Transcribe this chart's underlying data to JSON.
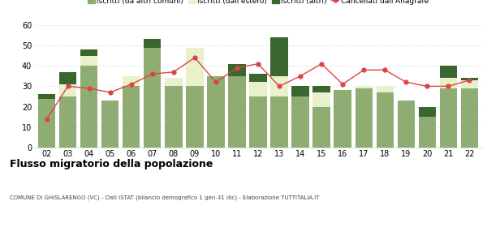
{
  "years": [
    "02",
    "03",
    "04",
    "05",
    "06",
    "07",
    "08",
    "09",
    "10",
    "11",
    "12",
    "13",
    "14",
    "15",
    "16",
    "17",
    "18",
    "19",
    "20",
    "21",
    "22"
  ],
  "iscritti_comuni": [
    24,
    25,
    40,
    23,
    30,
    49,
    30,
    30,
    35,
    35,
    25,
    25,
    25,
    20,
    28,
    29,
    27,
    23,
    15,
    29,
    29
  ],
  "iscritti_estero": [
    0,
    6,
    5,
    0,
    5,
    0,
    4,
    19,
    0,
    0,
    7,
    10,
    0,
    7,
    0,
    1,
    3,
    0,
    0,
    5,
    4
  ],
  "iscritti_altri": [
    2,
    6,
    3,
    0,
    0,
    4,
    0,
    0,
    0,
    6,
    4,
    19,
    5,
    3,
    0,
    0,
    0,
    0,
    5,
    6,
    1
  ],
  "cancellati": [
    14,
    30,
    29,
    27,
    31,
    36,
    37,
    44,
    32,
    39,
    41,
    30,
    35,
    41,
    31,
    38,
    38,
    32,
    30,
    30,
    33
  ],
  "color_comuni": "#8fac72",
  "color_estero": "#e8f0cc",
  "color_altri": "#3a6630",
  "color_cancellati": "#dd4444",
  "title": "Flusso migratorio della popolazione",
  "subtitle": "COMUNE DI GHISLARENGO (VC) - Dati ISTAT (bilancio demografico 1 gen-31 dic) - Elaborazione TUTTITALIA.IT",
  "legend_labels": [
    "Iscritti (da altri comuni)",
    "Iscritti (dall'estero)",
    "Iscritti (altri)",
    "Cancellati dall'Anagrafe"
  ],
  "ylim": [
    0,
    60
  ],
  "yticks": [
    0,
    10,
    20,
    30,
    40,
    50,
    60
  ]
}
